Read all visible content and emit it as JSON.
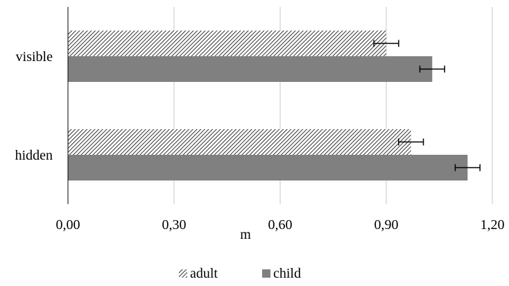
{
  "chart_data": {
    "type": "bar",
    "orientation": "horizontal",
    "categories": [
      "visible",
      "hidden"
    ],
    "series": [
      {
        "name": "adult",
        "values": [
          0.9,
          0.97
        ],
        "error": [
          0.035,
          0.035
        ],
        "fill": "hatched"
      },
      {
        "name": "child",
        "values": [
          1.03,
          1.13
        ],
        "error": [
          0.035,
          0.035
        ],
        "fill": "solid"
      }
    ],
    "xlabel": "m",
    "ylabel": "",
    "xlim": [
      0,
      1.2
    ],
    "xticks": [
      "0,00",
      "0,30",
      "0,60",
      "0,90",
      "1,20"
    ],
    "grid": "vertical",
    "legend_position": "bottom"
  },
  "colors": {
    "child": "#808080",
    "hatch": "#000000",
    "grid": "#d9d9d9",
    "axis": "#000000"
  }
}
